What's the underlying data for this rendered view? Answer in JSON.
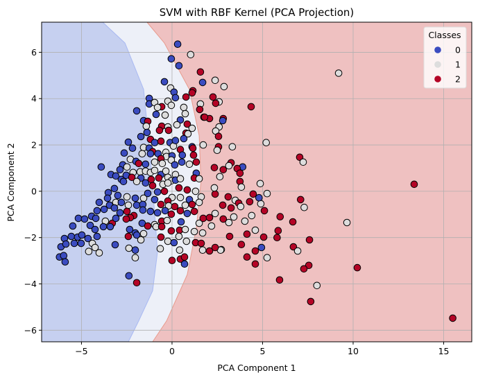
{
  "chart_data": {
    "type": "scatter",
    "title": "SVM with RBF Kernel (PCA Projection)",
    "xlabel": "PCA Component 1",
    "ylabel": "PCA Component 2",
    "xlim": [
      -7.2,
      16.55
    ],
    "ylim": [
      -6.5,
      7.3
    ],
    "xticks": [
      -5,
      0,
      5,
      10,
      15
    ],
    "yticks": [
      -6,
      -4,
      -2,
      0,
      2,
      4,
      6
    ],
    "grid": true,
    "legend": {
      "title": "Classes",
      "placement": "top-right",
      "entries": [
        "0",
        "1",
        "2"
      ]
    },
    "class_colors": [
      "#3b4cc0",
      "#dddddd",
      "#b40426"
    ],
    "region_colors": [
      "#c6d0f0",
      "#edf0f8",
      "#efc1c1"
    ],
    "decision_boundaries": {
      "class0_class1": [
        [
          -3.83,
          7.3
        ],
        [
          -2.6,
          6.4
        ],
        [
          -1.57,
          4.4
        ],
        [
          -1.19,
          1.4
        ],
        [
          -0.8,
          -2.6
        ],
        [
          -1.07,
          -4.3
        ],
        [
          -1.84,
          -5.6
        ],
        [
          -2.41,
          -6.5
        ]
      ],
      "class1_class2": [
        [
          -1.38,
          7.3
        ],
        [
          -0.42,
          6.4
        ],
        [
          0.96,
          4.4
        ],
        [
          1.5,
          2.4
        ],
        [
          1.6,
          0.4
        ],
        [
          1.34,
          -1.6
        ],
        [
          0.84,
          -3.6
        ],
        [
          -0.3,
          -5.6
        ],
        [
          -1.07,
          -6.5
        ]
      ]
    },
    "points": [
      [
        9.2,
        5.1,
        1
      ],
      [
        4.37,
        3.65,
        2
      ],
      [
        5.2,
        2.1,
        1
      ],
      [
        7.05,
        1.47,
        2
      ],
      [
        7.24,
        1.26,
        1
      ],
      [
        13.37,
        0.3,
        2
      ],
      [
        7.1,
        -0.36,
        2
      ],
      [
        7.3,
        -0.7,
        1
      ],
      [
        9.66,
        -1.35,
        1
      ],
      [
        5.97,
        -1.1,
        2
      ],
      [
        6.67,
        -1.32,
        2
      ],
      [
        7.59,
        -2.1,
        2
      ],
      [
        6.7,
        -2.4,
        2
      ],
      [
        6.94,
        -2.58,
        1
      ],
      [
        5.86,
        -1.7,
        2
      ],
      [
        5.8,
        -2.0,
        2
      ],
      [
        10.23,
        -3.3,
        2
      ],
      [
        7.55,
        -3.2,
        2
      ],
      [
        7.28,
        -3.35,
        2
      ],
      [
        5.94,
        -3.83,
        2
      ],
      [
        8.0,
        -4.07,
        1
      ],
      [
        7.66,
        -4.76,
        2
      ],
      [
        15.5,
        -5.48,
        2
      ],
      [
        5.25,
        -2.87,
        1
      ],
      [
        4.6,
        -3.14,
        2
      ],
      [
        4.14,
        -2.84,
        2
      ],
      [
        4.94,
        -2.43,
        0
      ],
      [
        5.06,
        -1.98,
        2
      ],
      [
        4.6,
        -2.58,
        2
      ],
      [
        3.83,
        -2.3,
        2
      ],
      [
        3.18,
        -1.95,
        2
      ],
      [
        4.14,
        -1.85,
        2
      ],
      [
        4.6,
        -1.68,
        1
      ],
      [
        4.4,
        -1.05,
        1
      ],
      [
        4.02,
        -1.29,
        1
      ],
      [
        5.1,
        -0.84,
        2
      ],
      [
        4.9,
        -0.54,
        1
      ],
      [
        4.8,
        -0.28,
        0
      ],
      [
        5.25,
        -0.1,
        1
      ],
      [
        4.48,
        -0.12,
        2
      ],
      [
        4.29,
        -0.45,
        2
      ],
      [
        4.87,
        0.33,
        1
      ],
      [
        3.75,
        0.42,
        2
      ],
      [
        3.83,
        0.18,
        1
      ],
      [
        3.9,
        1.05,
        0
      ],
      [
        3.6,
        0.98,
        2
      ],
      [
        3.75,
        0.78,
        2
      ],
      [
        3.26,
        1.23,
        2
      ],
      [
        3.14,
        1.1,
        1
      ],
      [
        3.33,
        1.92,
        1
      ],
      [
        2.83,
        0.93,
        2
      ],
      [
        2.64,
        0.63,
        1
      ],
      [
        2.34,
        1.02,
        2
      ],
      [
        2.38,
        -0.12,
        2
      ],
      [
        2.34,
        0.15,
        1
      ],
      [
        3.1,
        -0.24,
        2
      ],
      [
        3.49,
        -0.39,
        1
      ],
      [
        3.68,
        -0.51,
        2
      ],
      [
        3.79,
        -0.66,
        1
      ],
      [
        3.26,
        -0.72,
        2
      ],
      [
        2.8,
        -0.6,
        2
      ],
      [
        2.83,
        -1.2,
        2
      ],
      [
        3.41,
        -1.11,
        1
      ],
      [
        3.14,
        -1.35,
        1
      ],
      [
        2.38,
        -0.96,
        1
      ],
      [
        2.72,
        -2.52,
        1
      ],
      [
        2.87,
        4.52,
        1
      ],
      [
        2.38,
        4.79,
        1
      ],
      [
        2.26,
        4.07,
        2
      ],
      [
        2.6,
        3.86,
        1
      ],
      [
        2.41,
        3.8,
        2
      ],
      [
        2.83,
        3.14,
        2
      ],
      [
        2.8,
        3.05,
        0
      ],
      [
        2.6,
        2.78,
        1
      ],
      [
        2.41,
        2.6,
        1
      ],
      [
        2.57,
        2.37,
        2
      ],
      [
        2.57,
        1.92,
        2
      ],
      [
        2.49,
        1.77,
        1
      ],
      [
        1.57,
        5.15,
        2
      ],
      [
        1.69,
        4.7,
        0
      ],
      [
        1.57,
        3.77,
        1
      ],
      [
        1.53,
        3.53,
        2
      ],
      [
        1.76,
        3.2,
        2
      ],
      [
        2.07,
        3.14,
        2
      ],
      [
        0.31,
        6.35,
        0
      ],
      [
        1.03,
        5.9,
        1
      ],
      [
        -0.04,
        5.72,
        0
      ],
      [
        0.38,
        5.42,
        0
      ],
      [
        -0.42,
        4.73,
        0
      ],
      [
        -0.08,
        4.46,
        1
      ],
      [
        0.11,
        4.28,
        0
      ],
      [
        1.15,
        4.34,
        2
      ],
      [
        1.11,
        4.25,
        2
      ],
      [
        0.77,
        4.07,
        2
      ],
      [
        -1.26,
        4.01,
        0
      ],
      [
        -1.26,
        3.77,
        0
      ],
      [
        -0.96,
        3.83,
        1
      ],
      [
        -0.57,
        3.65,
        2
      ],
      [
        -0.8,
        3.62,
        1
      ],
      [
        -0.23,
        3.89,
        1
      ],
      [
        -0.04,
        3.71,
        1
      ],
      [
        0.19,
        4.04,
        0
      ],
      [
        -1.95,
        3.47,
        0
      ],
      [
        -0.88,
        3.32,
        0
      ],
      [
        -0.38,
        3.29,
        1
      ],
      [
        0.65,
        3.62,
        1
      ],
      [
        0.73,
        3.35,
        1
      ],
      [
        1.8,
        3.2,
        2
      ],
      [
        -1.57,
        3.05,
        0
      ],
      [
        -1.34,
        3.02,
        2
      ],
      [
        -1.42,
        2.81,
        1
      ],
      [
        0.46,
        3.08,
        0
      ],
      [
        -0.57,
        2.81,
        2
      ],
      [
        -0.23,
        2.78,
        1
      ],
      [
        0.27,
        2.87,
        1
      ],
      [
        0.84,
        2.9,
        2
      ],
      [
        1.11,
        2.72,
        1
      ],
      [
        -0.69,
        2.63,
        2
      ],
      [
        -0.19,
        2.63,
        2
      ],
      [
        0.77,
        2.51,
        2
      ],
      [
        0.88,
        2.48,
        1
      ],
      [
        -1.38,
        2.54,
        0
      ],
      [
        -1.72,
        2.36,
        0
      ],
      [
        -1.19,
        2.24,
        2
      ],
      [
        0.65,
        2.27,
        0
      ],
      [
        -2.41,
        2.12,
        0
      ],
      [
        -2.18,
        1.86,
        0
      ],
      [
        -1.57,
        1.89,
        1
      ],
      [
        -1.26,
        1.86,
        0
      ],
      [
        -0.96,
        2.1,
        0
      ],
      [
        -0.61,
        2.16,
        2
      ],
      [
        -0.11,
        2.1,
        0
      ],
      [
        0.08,
        1.95,
        1
      ],
      [
        0.19,
        2.19,
        0
      ],
      [
        0.46,
        1.8,
        2
      ],
      [
        1.11,
        1.92,
        0
      ],
      [
        1.15,
        1.86,
        2
      ],
      [
        1.72,
        2.0,
        1
      ],
      [
        -2.64,
        1.65,
        0
      ],
      [
        -2.3,
        1.38,
        1
      ],
      [
        -1.65,
        1.62,
        1
      ],
      [
        -1.07,
        1.71,
        2
      ],
      [
        -1.19,
        1.62,
        0
      ],
      [
        -0.77,
        1.62,
        0
      ],
      [
        -0.34,
        1.68,
        1
      ],
      [
        -0.31,
        1.5,
        1
      ],
      [
        0.0,
        1.53,
        0
      ],
      [
        -0.04,
        1.35,
        1
      ],
      [
        0.57,
        1.56,
        0
      ],
      [
        0.54,
        1.26,
        0
      ],
      [
        0.96,
        1.17,
        1
      ],
      [
        1.19,
        1.56,
        2
      ],
      [
        1.34,
        1.26,
        2
      ],
      [
        -3.91,
        1.05,
        0
      ],
      [
        -2.72,
        1.14,
        0
      ],
      [
        -2.49,
        1.05,
        1
      ],
      [
        -1.99,
        1.29,
        0
      ],
      [
        -1.84,
        1.2,
        2
      ],
      [
        -1.46,
        1.17,
        0
      ],
      [
        -0.96,
        1.26,
        1
      ],
      [
        -0.61,
        1.41,
        2
      ],
      [
        -0.54,
        1.2,
        1
      ],
      [
        0.15,
        1.14,
        0
      ],
      [
        -3.37,
        0.72,
        0
      ],
      [
        -3.1,
        0.66,
        0
      ],
      [
        -2.87,
        0.93,
        0
      ],
      [
        -2.8,
        0.51,
        0
      ],
      [
        -2.53,
        0.69,
        0
      ],
      [
        -2.15,
        0.81,
        1
      ],
      [
        -1.76,
        0.84,
        1
      ],
      [
        -2.22,
        0.6,
        2
      ],
      [
        -1.72,
        0.57,
        0
      ],
      [
        -1.46,
        0.87,
        1
      ],
      [
        -1.19,
        0.81,
        1
      ],
      [
        -0.96,
        0.9,
        1
      ],
      [
        -0.61,
        0.72,
        0
      ],
      [
        -0.34,
        0.87,
        1
      ],
      [
        -1.15,
        0.51,
        2
      ],
      [
        -0.73,
        0.57,
        2
      ],
      [
        -0.23,
        0.6,
        1
      ],
      [
        -0.04,
        0.45,
        1
      ],
      [
        0.19,
        0.72,
        1
      ],
      [
        0.19,
        0.48,
        0
      ],
      [
        0.46,
        0.54,
        1
      ],
      [
        1.34,
        0.78,
        0
      ],
      [
        1.23,
        0.57,
        2
      ],
      [
        1.5,
        0.54,
        1
      ],
      [
        -2.68,
        0.42,
        0
      ],
      [
        -1.95,
        0.42,
        1
      ],
      [
        -1.46,
        0.36,
        0
      ],
      [
        -1.07,
        0.24,
        2
      ],
      [
        -0.5,
        0.3,
        1
      ],
      [
        -0.23,
        0.36,
        1
      ],
      [
        0.38,
        0.15,
        2
      ],
      [
        0.84,
        0.06,
        2
      ],
      [
        1.3,
        0.0,
        1
      ],
      [
        -3.52,
        -0.06,
        0
      ],
      [
        -3.18,
        0.12,
        0
      ],
      [
        -3.56,
        -0.3,
        0
      ],
      [
        -2.99,
        -0.18,
        0
      ],
      [
        -2.49,
        -0.24,
        1
      ],
      [
        -2.03,
        -0.3,
        0
      ],
      [
        -1.57,
        -0.3,
        1
      ],
      [
        -1.34,
        -0.09,
        0
      ],
      [
        -0.8,
        -0.03,
        0
      ],
      [
        -0.42,
        0.0,
        2
      ],
      [
        0.0,
        -0.27,
        1
      ],
      [
        0.46,
        -0.27,
        1
      ],
      [
        0.96,
        -0.36,
        0
      ],
      [
        1.61,
        -0.24,
        1
      ],
      [
        -4.02,
        -0.48,
        0
      ],
      [
        -3.45,
        -0.6,
        0
      ],
      [
        -3.1,
        -0.48,
        1
      ],
      [
        -2.8,
        -0.48,
        0
      ],
      [
        -2.41,
        -0.6,
        1
      ],
      [
        -1.95,
        -0.6,
        0
      ],
      [
        -1.61,
        -0.57,
        0
      ],
      [
        -0.96,
        -0.36,
        0
      ],
      [
        -0.61,
        -0.57,
        2
      ],
      [
        -0.23,
        -0.42,
        2
      ],
      [
        -0.19,
        -0.63,
        1
      ],
      [
        0.15,
        -0.66,
        2
      ],
      [
        0.73,
        -0.6,
        1
      ],
      [
        1.11,
        -0.57,
        2
      ],
      [
        1.5,
        -0.48,
        1
      ],
      [
        -4.14,
        -0.84,
        0
      ],
      [
        -3.75,
        -0.78,
        0
      ],
      [
        -3.18,
        -0.72,
        0
      ],
      [
        -2.87,
        -0.93,
        0
      ],
      [
        -2.49,
        -0.87,
        2
      ],
      [
        -2.11,
        -1.05,
        2
      ],
      [
        -2.3,
        -1.14,
        2
      ],
      [
        -1.61,
        -0.81,
        0
      ],
      [
        -1.19,
        -0.87,
        0
      ],
      [
        -0.8,
        -0.93,
        0
      ],
      [
        -0.38,
        -0.84,
        0
      ],
      [
        -0.04,
        -0.99,
        2
      ],
      [
        0.46,
        -0.84,
        2
      ],
      [
        0.84,
        -0.96,
        0
      ],
      [
        1.23,
        -0.87,
        2
      ],
      [
        -5.17,
        -1.17,
        0
      ],
      [
        -4.83,
        -1.2,
        0
      ],
      [
        -4.44,
        -1.08,
        0
      ],
      [
        -4.21,
        -1.17,
        0
      ],
      [
        -3.68,
        -1.29,
        1
      ],
      [
        -3.3,
        -1.38,
        2
      ],
      [
        -3.1,
        -1.17,
        0
      ],
      [
        -2.53,
        -1.2,
        2
      ],
      [
        -1.65,
        -1.38,
        0
      ],
      [
        -1.34,
        -1.5,
        2
      ],
      [
        -0.96,
        -1.44,
        1
      ],
      [
        -0.57,
        -1.29,
        2
      ],
      [
        -0.27,
        -1.26,
        1
      ],
      [
        0.5,
        -1.32,
        0
      ],
      [
        1.5,
        -1.38,
        1
      ],
      [
        1.72,
        -1.17,
        2
      ],
      [
        2.07,
        -1.14,
        2
      ],
      [
        -5.48,
        -1.5,
        0
      ],
      [
        -4.52,
        -1.47,
        0
      ],
      [
        -4.25,
        -1.65,
        0
      ],
      [
        -3.79,
        -1.53,
        0
      ],
      [
        -3.41,
        -1.53,
        0
      ],
      [
        -2.34,
        -1.65,
        0
      ],
      [
        -2.03,
        -1.8,
        0
      ],
      [
        -1.57,
        -1.83,
        1
      ],
      [
        -0.88,
        -1.53,
        1
      ],
      [
        -0.57,
        -1.53,
        2
      ],
      [
        -0.04,
        -1.71,
        2
      ],
      [
        0.42,
        -1.68,
        2
      ],
      [
        0.73,
        -1.65,
        1
      ],
      [
        1.23,
        -1.74,
        1
      ],
      [
        1.69,
        -1.8,
        1
      ],
      [
        2.18,
        -1.5,
        1
      ],
      [
        -5.94,
        -2.04,
        0
      ],
      [
        -5.56,
        -1.95,
        0
      ],
      [
        -5.21,
        -1.98,
        0
      ],
      [
        -4.98,
        -1.89,
        0
      ],
      [
        -4.64,
        -2.04,
        0
      ],
      [
        -4.14,
        -1.95,
        0
      ],
      [
        -2.41,
        -1.95,
        2
      ],
      [
        -1.95,
        -1.89,
        0
      ],
      [
        -1.72,
        -2.1,
        1
      ],
      [
        -0.61,
        -1.98,
        2
      ],
      [
        -0.23,
        -2.16,
        1
      ],
      [
        0.11,
        -2.22,
        0
      ],
      [
        0.38,
        -1.95,
        1
      ],
      [
        0.8,
        -2.16,
        1
      ],
      [
        1.3,
        -2.22,
        2
      ],
      [
        1.61,
        -2.25,
        2
      ],
      [
        -6.13,
        -2.4,
        0
      ],
      [
        -5.86,
        -2.28,
        0
      ],
      [
        -5.4,
        -2.25,
        0
      ],
      [
        -5.02,
        -2.25,
        0
      ],
      [
        -4.4,
        -2.25,
        1
      ],
      [
        -4.25,
        -2.43,
        1
      ],
      [
        -4.6,
        -2.6,
        1
      ],
      [
        -4.02,
        -2.66,
        1
      ],
      [
        -3.14,
        -2.31,
        0
      ],
      [
        -2.38,
        -2.46,
        1
      ],
      [
        -2.03,
        -2.54,
        0
      ],
      [
        -0.65,
        -2.48,
        1
      ],
      [
        0.42,
        -2.54,
        1
      ],
      [
        1.69,
        -2.54,
        1
      ],
      [
        2.07,
        -2.58,
        2
      ],
      [
        2.68,
        -2.54,
        1
      ],
      [
        2.38,
        -2.43,
        2
      ],
      [
        -6.21,
        -2.84,
        0
      ],
      [
        -5.98,
        -2.78,
        0
      ],
      [
        -5.9,
        -3.05,
        0
      ],
      [
        -2.03,
        -2.87,
        1
      ],
      [
        0.0,
        -2.99,
        2
      ],
      [
        0.46,
        -2.93,
        2
      ],
      [
        0.69,
        -2.84,
        2
      ],
      [
        0.69,
        -3.14,
        0
      ],
      [
        -2.38,
        -3.65,
        0
      ],
      [
        -1.95,
        -3.95,
        2
      ]
    ]
  }
}
